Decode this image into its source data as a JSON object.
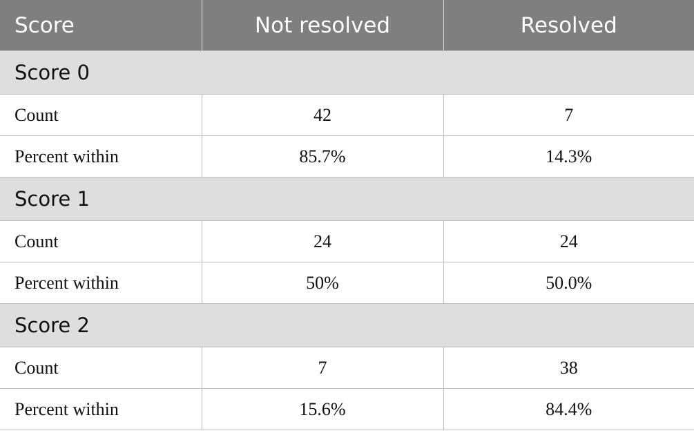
{
  "header": {
    "col1": "Score",
    "col2": "Not resolved",
    "col3": "Resolved"
  },
  "groups": [
    {
      "title": "Score 0",
      "rows": [
        {
          "label": "Count",
          "not_resolved": "42",
          "resolved": "7"
        },
        {
          "label": "Percent within",
          "not_resolved": "85.7%",
          "resolved": "14.3%"
        }
      ]
    },
    {
      "title": "Score 1",
      "rows": [
        {
          "label": "Count",
          "not_resolved": "24",
          "resolved": "24"
        },
        {
          "label": "Percent within",
          "not_resolved": "50%",
          "resolved": "50.0%"
        }
      ]
    },
    {
      "title": "Score 2",
      "rows": [
        {
          "label": "Count",
          "not_resolved": "7",
          "resolved": "38"
        },
        {
          "label": "Percent within",
          "not_resolved": "15.6%",
          "resolved": "84.4%"
        }
      ]
    }
  ],
  "colors": {
    "header_bg": "#7f7f7f",
    "group_bg": "#dedede",
    "border": "#bdbdbd"
  }
}
